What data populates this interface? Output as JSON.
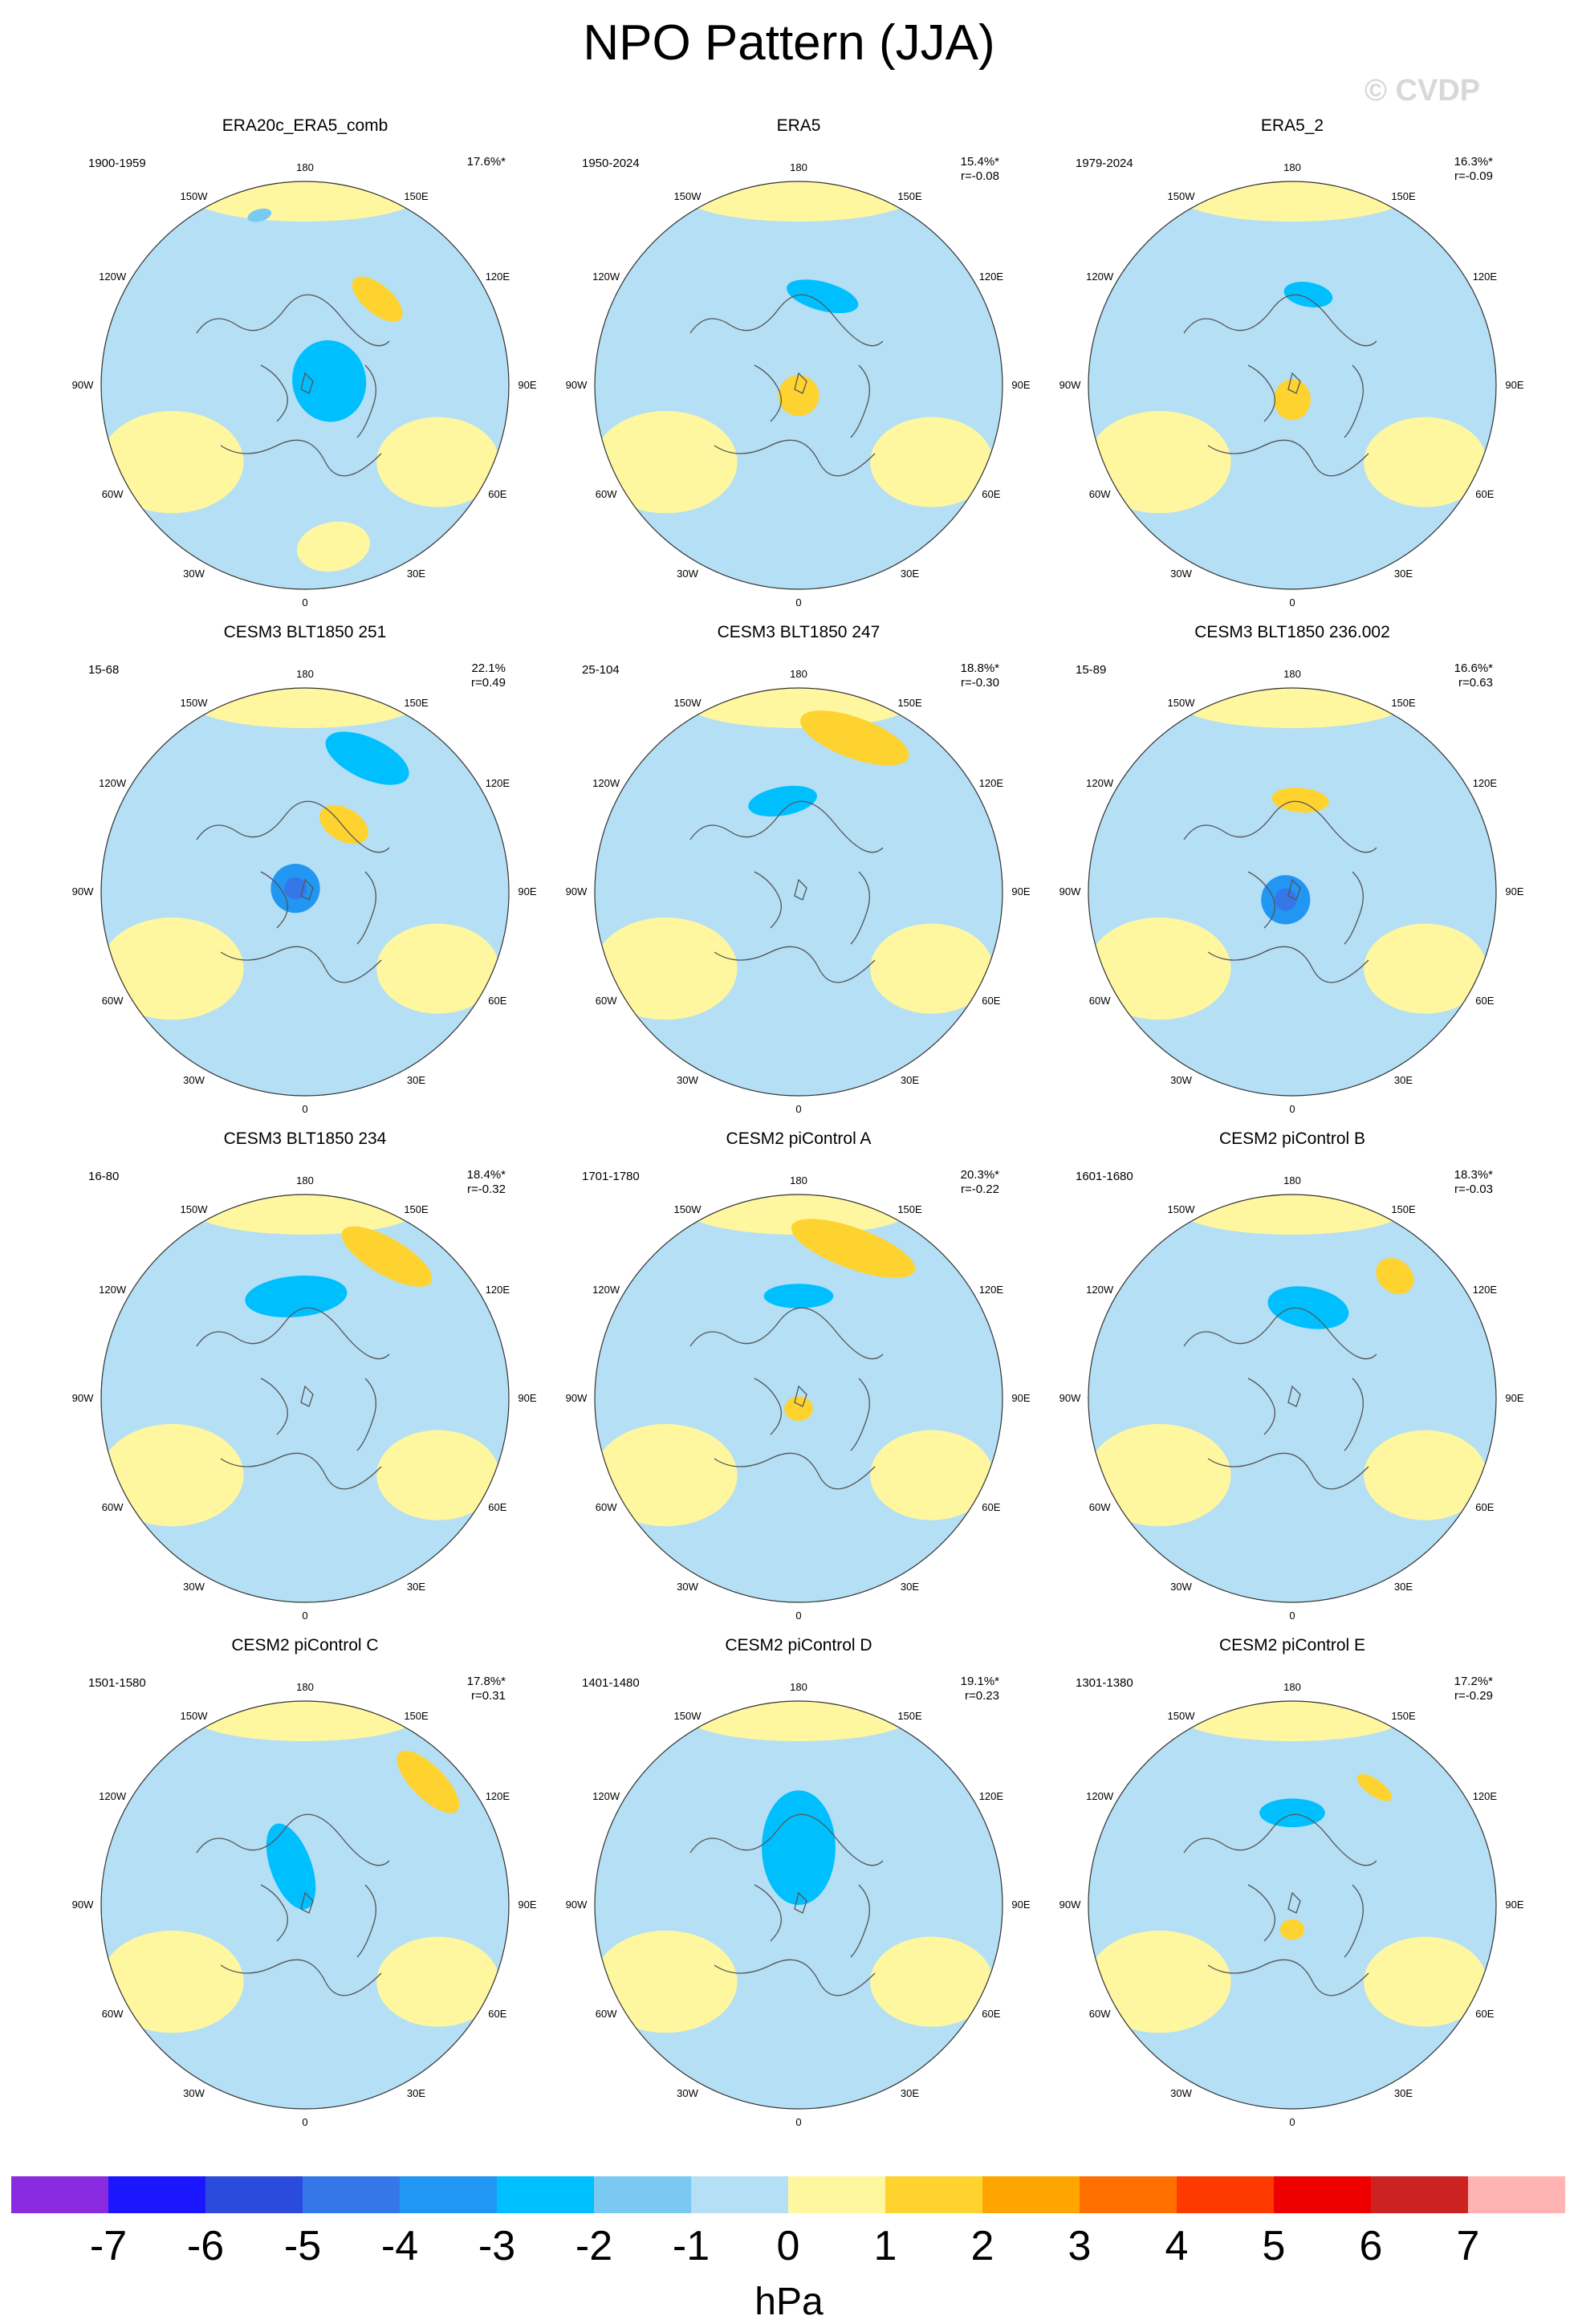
{
  "title": "NPO Pattern (JJA)",
  "watermark": "© CVDP",
  "longitude_labels": {
    "n": "180",
    "nw": "150W",
    "ne": "150E",
    "wnw": "120W",
    "ene": "120E",
    "w": "90W",
    "e": "90E",
    "wsw": "60W",
    "ese": "60E",
    "sw": "30W",
    "se": "30E",
    "s": "0"
  },
  "panels": [
    {
      "title": "ERA20c_ERA5_comb",
      "years": "1900-1959",
      "pct": "17.6%*",
      "r": "",
      "pattern": [
        {
          "lon": 195,
          "r": 0.86,
          "rx": 0.06,
          "ry": 0.03,
          "v": -1
        },
        {
          "lon": 140,
          "r": 0.55,
          "rx": 0.15,
          "ry": 0.07,
          "v": 2
        },
        {
          "lon": 100,
          "r": 0.12,
          "rx": 0.2,
          "ry": 0.18,
          "v": -2
        },
        {
          "lon": 10,
          "r": 0.8,
          "rx": 0.18,
          "ry": 0.12,
          "v": 1
        }
      ]
    },
    {
      "title": "ERA5",
      "years": "1950-2024",
      "pct": "15.4%*",
      "r": "r=-0.08",
      "pattern": [
        {
          "lon": 165,
          "r": 0.45,
          "rx": 0.18,
          "ry": 0.07,
          "v": -2
        },
        {
          "lon": 0,
          "r": 0.05,
          "rx": 0.1,
          "ry": 0.1,
          "v": 2
        }
      ]
    },
    {
      "title": "ERA5_2",
      "years": "1979-2024",
      "pct": "16.3%*",
      "r": "r=-0.09",
      "pattern": [
        {
          "lon": 170,
          "r": 0.45,
          "rx": 0.12,
          "ry": 0.06,
          "v": -2
        },
        {
          "lon": 0,
          "r": 0.07,
          "rx": 0.09,
          "ry": 0.1,
          "v": 2
        }
      ]
    },
    {
      "title": "CESM3 BLT1850 251",
      "years": "15-68",
      "pct": "22.1%",
      "r": "r=0.49",
      "pattern": [
        {
          "lon": 155,
          "r": 0.72,
          "rx": 0.22,
          "ry": 0.1,
          "v": -2
        },
        {
          "lon": 150,
          "r": 0.38,
          "rx": 0.13,
          "ry": 0.08,
          "v": 2
        },
        {
          "lon": 250,
          "r": 0.05,
          "rx": 0.12,
          "ry": 0.12,
          "v": -3
        }
      ]
    },
    {
      "title": "CESM3 BLT1850 247",
      "years": "25-104",
      "pct": "18.8%*",
      "r": "r=-0.30",
      "pattern": [
        {
          "lon": 160,
          "r": 0.8,
          "rx": 0.28,
          "ry": 0.1,
          "v": 2
        },
        {
          "lon": 190,
          "r": 0.45,
          "rx": 0.17,
          "ry": 0.07,
          "v": -2
        }
      ]
    },
    {
      "title": "CESM3 BLT1850 236.002",
      "years": "15-89",
      "pct": "16.6%*",
      "r": "r=0.63",
      "pattern": [
        {
          "lon": 175,
          "r": 0.45,
          "rx": 0.14,
          "ry": 0.06,
          "v": 2
        },
        {
          "lon": 320,
          "r": 0.05,
          "rx": 0.12,
          "ry": 0.12,
          "v": -3
        }
      ]
    },
    {
      "title": "CESM3 BLT1850 234",
      "years": "16-80",
      "pct": "18.4%*",
      "r": "r=-0.32",
      "pattern": [
        {
          "lon": 150,
          "r": 0.8,
          "rx": 0.25,
          "ry": 0.09,
          "v": 2
        },
        {
          "lon": 185,
          "r": 0.5,
          "rx": 0.25,
          "ry": 0.1,
          "v": -2
        }
      ]
    },
    {
      "title": "CESM2 piControl A",
      "years": "1701-1780",
      "pct": "20.3%*",
      "r": "r=-0.22",
      "pattern": [
        {
          "lon": 160,
          "r": 0.78,
          "rx": 0.32,
          "ry": 0.1,
          "v": 2
        },
        {
          "lon": 180,
          "r": 0.5,
          "rx": 0.17,
          "ry": 0.06,
          "v": -2
        },
        {
          "lon": 0,
          "r": 0.05,
          "rx": 0.07,
          "ry": 0.06,
          "v": 2
        }
      ]
    },
    {
      "title": "CESM2 piControl B",
      "years": "1601-1680",
      "pct": "18.3%*",
      "r": "r=-0.03",
      "pattern": [
        {
          "lon": 140,
          "r": 0.78,
          "rx": 0.1,
          "ry": 0.08,
          "v": 2
        },
        {
          "lon": 170,
          "r": 0.45,
          "rx": 0.2,
          "ry": 0.1,
          "v": -2
        }
      ]
    },
    {
      "title": "CESM2 piControl C",
      "years": "1501-1580",
      "pct": "17.8%*",
      "r": "r=0.31",
      "pattern": [
        {
          "lon": 135,
          "r": 0.85,
          "rx": 0.2,
          "ry": 0.08,
          "v": 2
        },
        {
          "lon": 200,
          "r": 0.2,
          "rx": 0.1,
          "ry": 0.22,
          "v": -2
        }
      ]
    },
    {
      "title": "CESM2 piControl D",
      "years": "1401-1480",
      "pct": "19.1%*",
      "r": "r=0.23",
      "pattern": [
        {
          "lon": 180,
          "r": 0.28,
          "rx": 0.18,
          "ry": 0.28,
          "v": -2
        }
      ]
    },
    {
      "title": "CESM2 piControl E",
      "years": "1301-1380",
      "pct": "17.2%*",
      "r": "r=-0.29",
      "pattern": [
        {
          "lon": 145,
          "r": 0.7,
          "rx": 0.1,
          "ry": 0.04,
          "v": 2
        },
        {
          "lon": 180,
          "r": 0.45,
          "rx": 0.16,
          "ry": 0.07,
          "v": -2
        },
        {
          "lon": 0,
          "r": 0.12,
          "rx": 0.06,
          "ry": 0.05,
          "v": 2
        }
      ]
    }
  ],
  "colorbar": {
    "colors": [
      "#8a2be2",
      "#1a16ff",
      "#2a4bdc",
      "#3577e8",
      "#2196f3",
      "#00bfff",
      "#79c9f2",
      "#b4dff5",
      "#fff7a0",
      "#fed32f",
      "#ffa500",
      "#ff7000",
      "#ff3a00",
      "#ee0000",
      "#cc2222",
      "#ffb3b3"
    ],
    "ticks": [
      "-7",
      "-6",
      "-5",
      "-4",
      "-3",
      "-2",
      "-1",
      "0",
      "1",
      "2",
      "3",
      "4",
      "5",
      "6",
      "7"
    ],
    "unit": "hPa"
  }
}
